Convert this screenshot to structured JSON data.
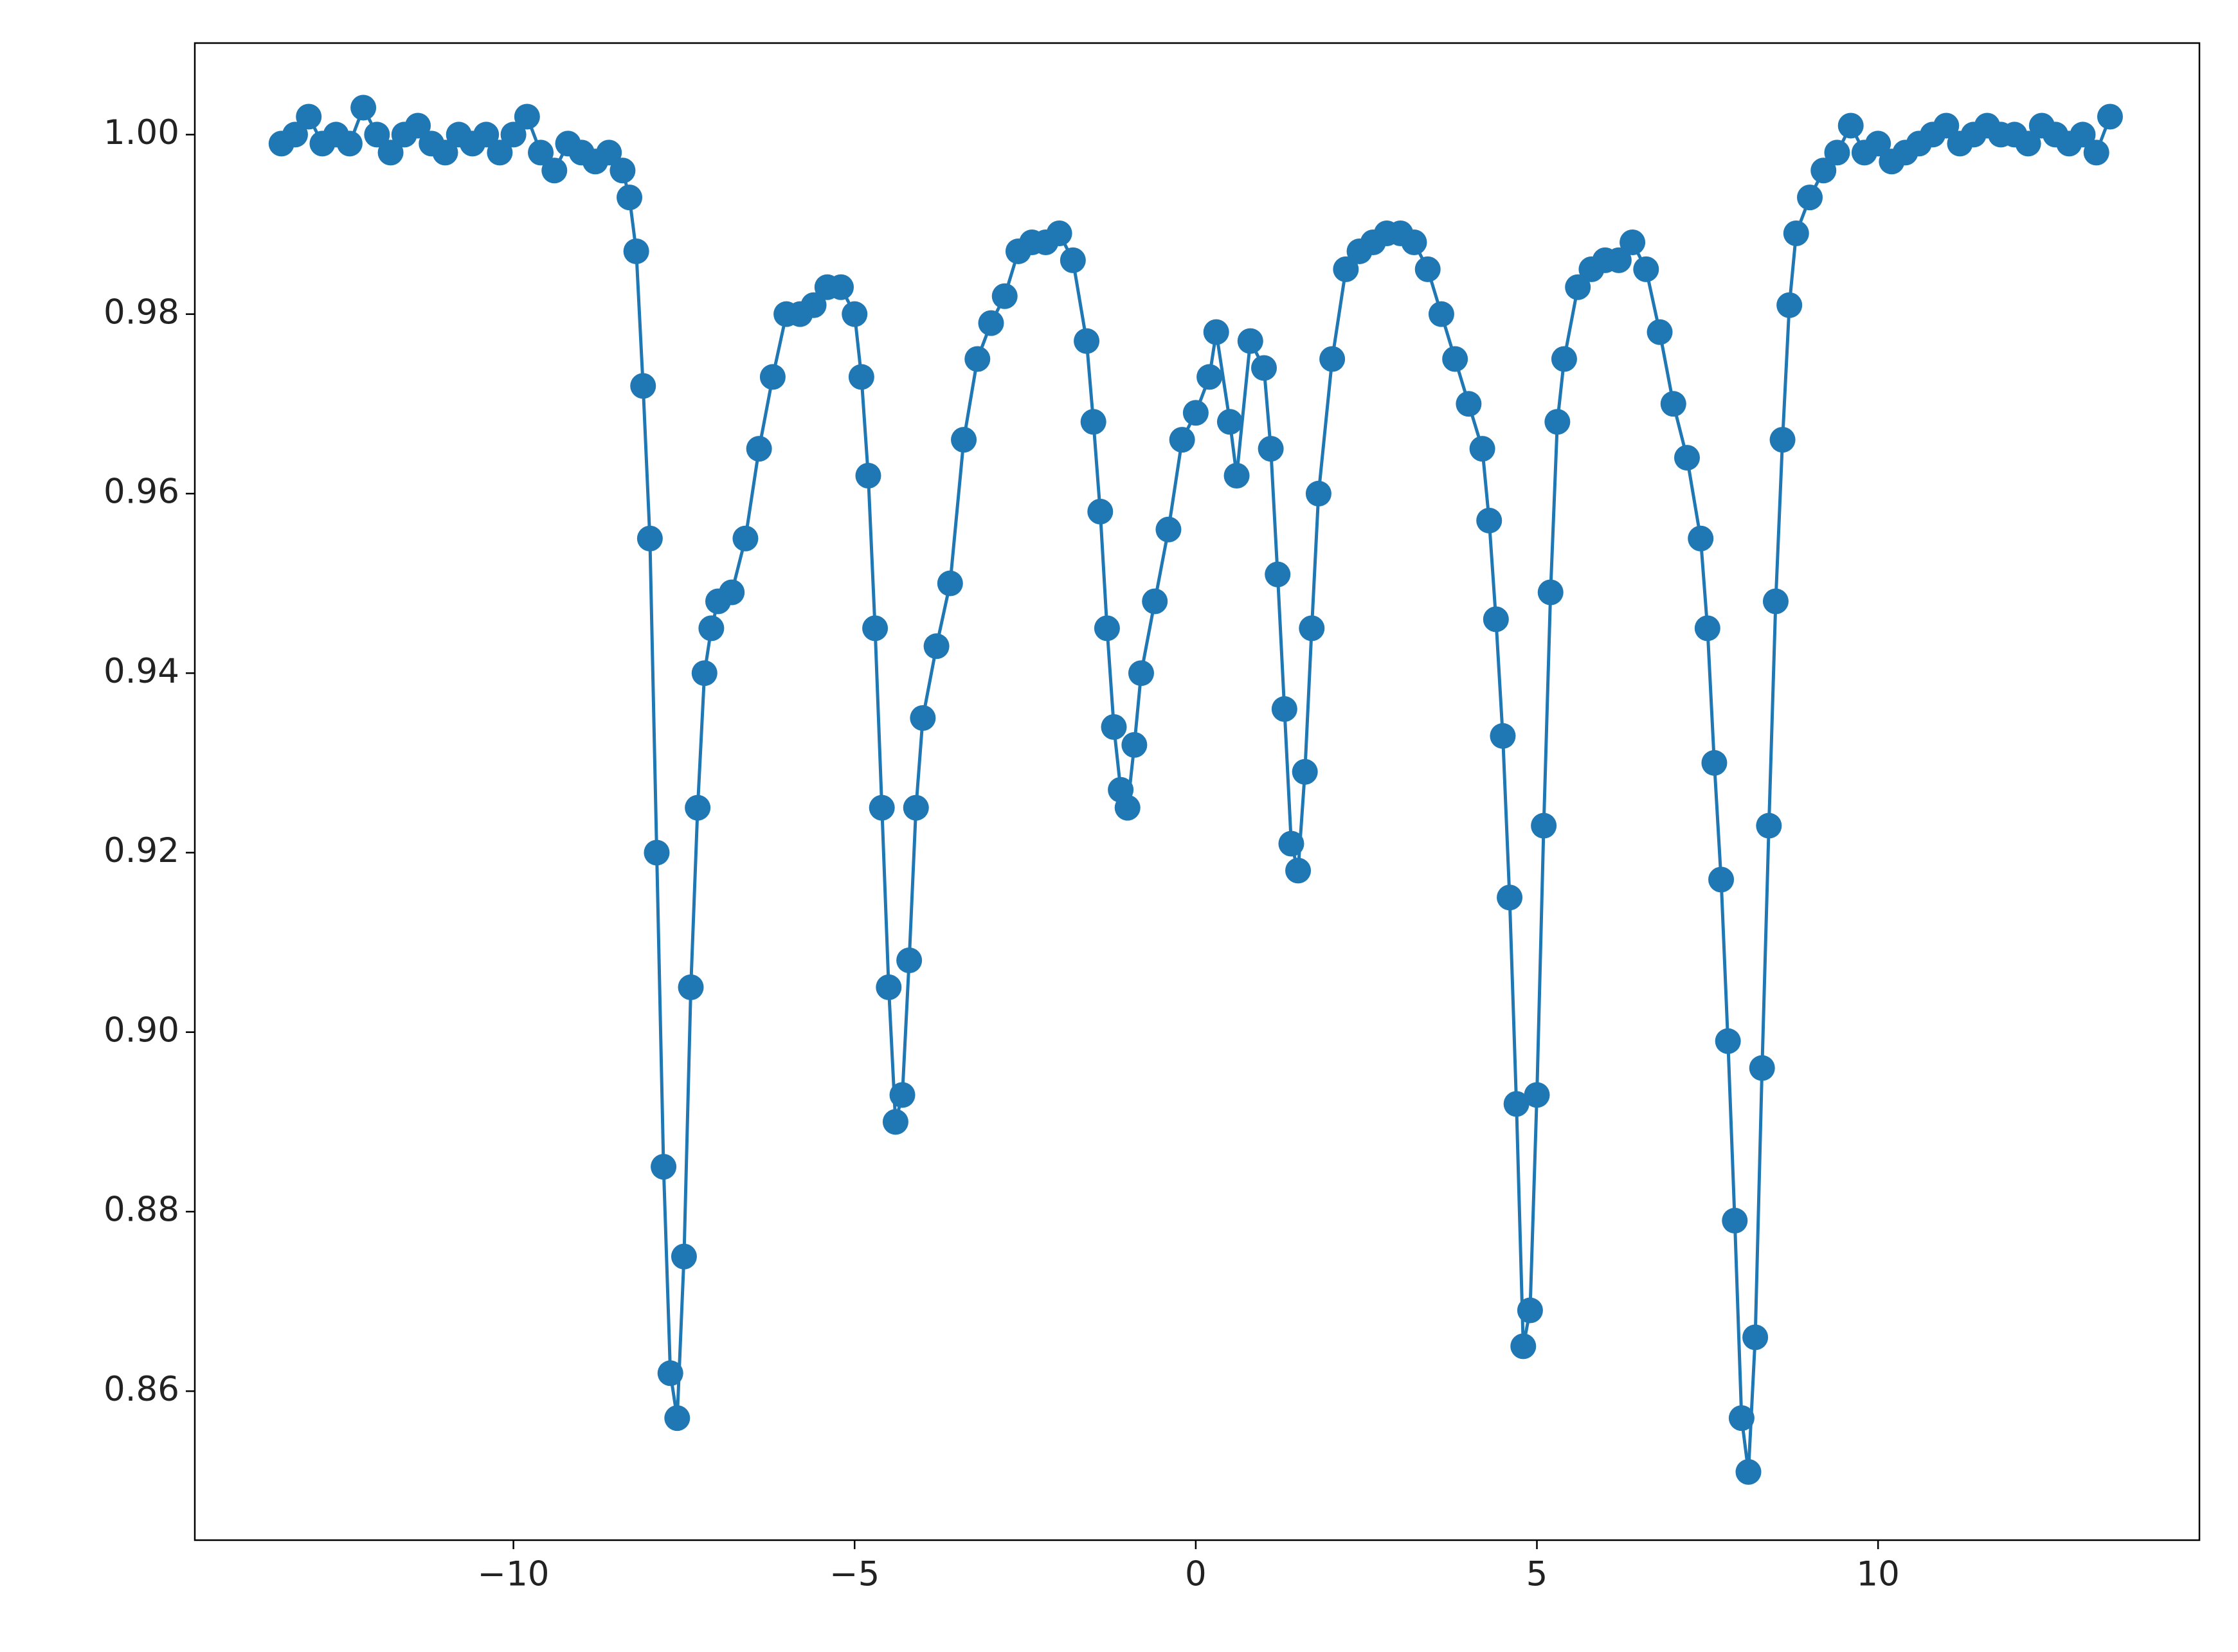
{
  "chart_data": {
    "type": "line",
    "color": "#1f77b4",
    "marker": "circle",
    "x": [
      -13.4,
      -13.2,
      -13.0,
      -12.8,
      -12.6,
      -12.4,
      -12.2,
      -12.0,
      -11.8,
      -11.6,
      -11.4,
      -11.2,
      -11.0,
      -10.8,
      -10.6,
      -10.4,
      -10.2,
      -10.0,
      -9.8,
      -9.6,
      -9.4,
      -9.2,
      -9.0,
      -8.8,
      -8.6,
      -8.4,
      -8.3,
      -8.2,
      -8.1,
      -8.0,
      -7.9,
      -7.8,
      -7.7,
      -7.6,
      -7.5,
      -7.4,
      -7.3,
      -7.2,
      -7.1,
      -7.0,
      -6.8,
      -6.6,
      -6.4,
      -6.2,
      -6.0,
      -5.8,
      -5.6,
      -5.4,
      -5.2,
      -5.0,
      -4.9,
      -4.8,
      -4.7,
      -4.6,
      -4.5,
      -4.4,
      -4.3,
      -4.2,
      -4.1,
      -4.0,
      -3.8,
      -3.6,
      -3.4,
      -3.2,
      -3.0,
      -2.8,
      -2.6,
      -2.4,
      -2.2,
      -2.0,
      -1.8,
      -1.6,
      -1.5,
      -1.4,
      -1.3,
      -1.2,
      -1.1,
      -1.0,
      -0.9,
      -0.8,
      -0.6,
      -0.4,
      -0.2,
      0.0,
      0.2,
      0.3,
      0.5,
      0.6,
      0.8,
      1.0,
      1.1,
      1.2,
      1.3,
      1.4,
      1.5,
      1.6,
      1.7,
      1.8,
      2.0,
      2.2,
      2.4,
      2.6,
      2.8,
      3.0,
      3.2,
      3.4,
      3.6,
      3.8,
      4.0,
      4.2,
      4.3,
      4.4,
      4.5,
      4.6,
      4.7,
      4.8,
      4.9,
      5.0,
      5.1,
      5.2,
      5.3,
      5.4,
      5.6,
      5.8,
      6.0,
      6.2,
      6.4,
      6.6,
      6.8,
      7.0,
      7.2,
      7.4,
      7.5,
      7.6,
      7.7,
      7.8,
      7.9,
      8.0,
      8.1,
      8.2,
      8.3,
      8.4,
      8.5,
      8.6,
      8.7,
      8.8,
      9.0,
      9.2,
      9.4,
      9.6,
      9.8,
      10.0,
      10.2,
      10.4,
      10.6,
      10.8,
      11.0,
      11.2,
      11.4,
      11.6,
      11.8,
      12.0,
      12.2,
      12.4,
      12.6,
      12.8,
      13.0,
      13.2,
      13.4
    ],
    "values": [
      0.999,
      1.0,
      1.002,
      0.999,
      1.0,
      0.999,
      1.003,
      1.0,
      0.998,
      1.0,
      1.001,
      0.999,
      0.998,
      1.0,
      0.999,
      1.0,
      0.998,
      1.0,
      1.002,
      0.998,
      0.996,
      0.999,
      0.998,
      0.997,
      0.998,
      0.996,
      0.993,
      0.987,
      0.972,
      0.955,
      0.92,
      0.885,
      0.862,
      0.857,
      0.875,
      0.905,
      0.925,
      0.94,
      0.945,
      0.948,
      0.949,
      0.955,
      0.965,
      0.973,
      0.98,
      0.98,
      0.981,
      0.983,
      0.983,
      0.98,
      0.973,
      0.962,
      0.945,
      0.925,
      0.905,
      0.89,
      0.893,
      0.908,
      0.925,
      0.935,
      0.943,
      0.95,
      0.966,
      0.975,
      0.979,
      0.982,
      0.987,
      0.988,
      0.988,
      0.989,
      0.986,
      0.977,
      0.968,
      0.958,
      0.945,
      0.934,
      0.927,
      0.925,
      0.932,
      0.94,
      0.948,
      0.956,
      0.966,
      0.969,
      0.973,
      0.978,
      0.968,
      0.962,
      0.977,
      0.974,
      0.965,
      0.951,
      0.936,
      0.921,
      0.918,
      0.929,
      0.945,
      0.96,
      0.975,
      0.985,
      0.987,
      0.988,
      0.989,
      0.989,
      0.988,
      0.985,
      0.98,
      0.975,
      0.97,
      0.965,
      0.957,
      0.946,
      0.933,
      0.915,
      0.892,
      0.865,
      0.869,
      0.893,
      0.923,
      0.949,
      0.968,
      0.975,
      0.983,
      0.985,
      0.986,
      0.986,
      0.988,
      0.985,
      0.978,
      0.97,
      0.964,
      0.955,
      0.945,
      0.93,
      0.917,
      0.899,
      0.879,
      0.857,
      0.851,
      0.866,
      0.896,
      0.923,
      0.948,
      0.966,
      0.981,
      0.989,
      0.993,
      0.996,
      0.998,
      1.001,
      0.998,
      0.999,
      0.997,
      0.998,
      0.999,
      1.0,
      1.001,
      0.999,
      1.0,
      1.001,
      1.0,
      1.0,
      0.999,
      1.001,
      1.0,
      0.999,
      1.0,
      0.998,
      1.002
    ],
    "xlim": [
      -14.67,
      14.71
    ],
    "ylim": [
      0.8434,
      1.0102
    ],
    "xticks": [
      {
        "value": -10,
        "label": "−10"
      },
      {
        "value": -5,
        "label": "−5"
      },
      0,
      5,
      10
    ],
    "yticks": [
      0.86,
      0.88,
      {
        "value": 0.9,
        "label": "0.90"
      },
      0.92,
      0.94,
      0.96,
      0.98,
      {
        "value": 1.0,
        "label": "1.00"
      }
    ]
  }
}
